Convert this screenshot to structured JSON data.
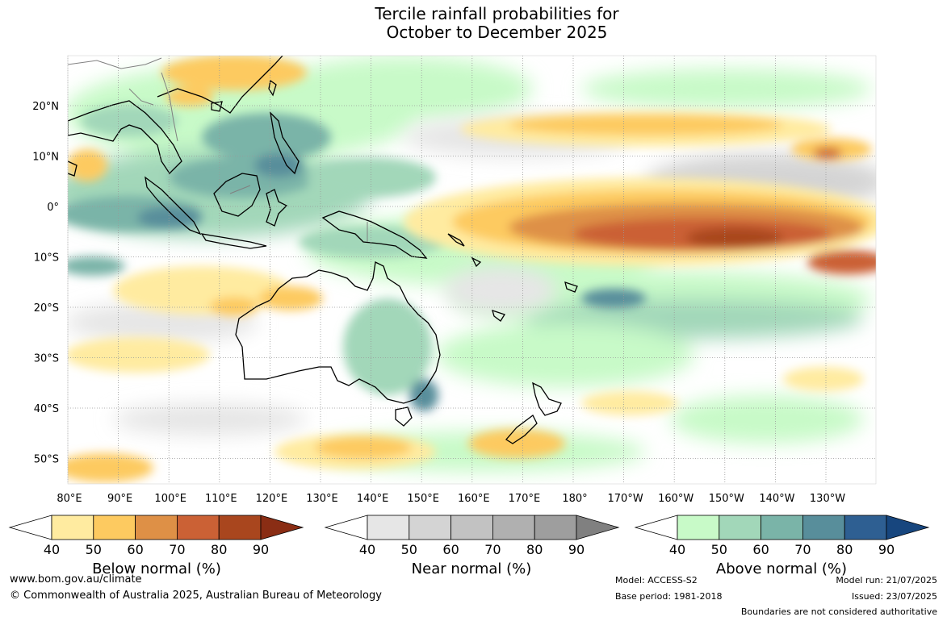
{
  "title": {
    "line1": "Tercile rainfall probabilities for",
    "line2": "October to December 2025"
  },
  "map": {
    "lat_ticks": [
      "20°N",
      "10°N",
      "0°",
      "10°S",
      "20°S",
      "30°S",
      "40°S",
      "50°S"
    ],
    "lon_ticks": [
      "80°E",
      "90°E",
      "100°E",
      "110°E",
      "120°E",
      "130°E",
      "140°E",
      "150°E",
      "160°E",
      "170°E",
      "180°",
      "170°W",
      "160°W",
      "150°W",
      "140°W",
      "130°W"
    ],
    "grid": true,
    "coastline_color": "#000000",
    "boundary_color": "#808080"
  },
  "colorbars": [
    {
      "label": "Below normal (%)",
      "ticks": [
        "40",
        "50",
        "60",
        "70",
        "80",
        "90"
      ],
      "colors": [
        "#ffffff",
        "#ffeba0",
        "#fdca60",
        "#de9046",
        "#cb6135",
        "#a9461e",
        "#8a2d14"
      ]
    },
    {
      "label": "Near normal (%)",
      "ticks": [
        "40",
        "50",
        "60",
        "70",
        "80",
        "90"
      ],
      "colors": [
        "#ffffff",
        "#e6e6e6",
        "#d4d4d4",
        "#c2c2c2",
        "#b0b0b0",
        "#9e9e9e",
        "#808080"
      ]
    },
    {
      "label": "Above normal (%)",
      "ticks": [
        "40",
        "50",
        "60",
        "70",
        "80",
        "90"
      ],
      "colors": [
        "#ffffff",
        "#c8fac8",
        "#a2d7b9",
        "#7ab4a8",
        "#588e9b",
        "#2e5f92",
        "#17467e"
      ]
    }
  ],
  "footer": {
    "url": "www.bom.gov.au/climate",
    "copyright": "© Commonwealth of Australia 2025, Australian Bureau of Meteorology",
    "model": "Model: ACCESS-S2",
    "base_period": "Base period: 1981-2018",
    "model_run": "Model run: 21/07/2025",
    "issued": "Issued: 23/07/2025",
    "disclaimer": "Boundaries are not considered authoritative"
  }
}
